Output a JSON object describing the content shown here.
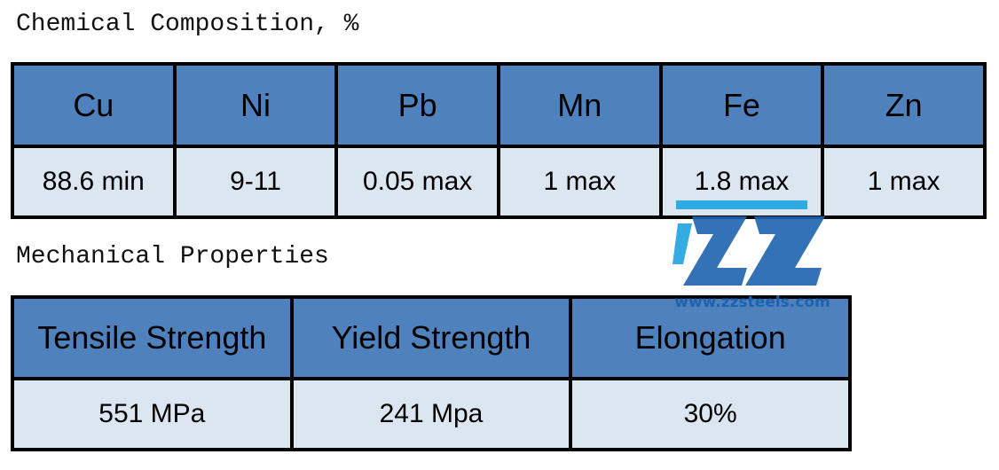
{
  "sections": [
    {
      "title": "Chemical Composition, %",
      "table": {
        "header": [
          "Cu",
          "Ni",
          "Pb",
          "Mn",
          "Fe",
          "Zn"
        ],
        "rows": [
          [
            "88.6 min",
            "9-11",
            "0.05 max",
            "1 max",
            "1.8 max",
            "1 max"
          ]
        ]
      }
    },
    {
      "title": "Mechanical Properties",
      "table": {
        "header": [
          "Tensile Strength",
          "Yield Strength",
          "Elongation"
        ],
        "rows": [
          [
            "551 MPa",
            "241 Mpa",
            "30%"
          ]
        ]
      }
    }
  ],
  "watermark": {
    "url": "www.zzsteels.com"
  }
}
